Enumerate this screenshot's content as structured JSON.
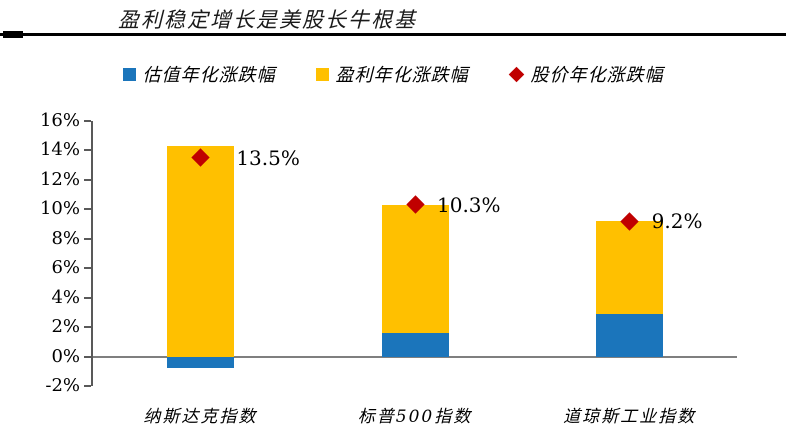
{
  "header": {
    "title": "盈利稳定增长是美股长牛根基"
  },
  "legend": {
    "items": [
      {
        "label": "估值年化涨跌幅",
        "color": "#1B75BB",
        "marker": "square"
      },
      {
        "label": "盈利年化涨跌幅",
        "color": "#FFC000",
        "marker": "square"
      },
      {
        "label": "股价年化涨跌幅",
        "color": "#C00000",
        "marker": "diamond"
      }
    ]
  },
  "colors": {
    "valuation_blue": "#1B75BB",
    "earnings_yellow": "#FFC000",
    "price_red": "#C00000",
    "axis": "#595959",
    "zero_line": "#7f7f7f"
  },
  "chart_data": {
    "type": "bar",
    "stacked": true,
    "title": "盈利稳定增长是美股长牛根基",
    "categories": [
      "纳斯达克指数",
      "标普500指数",
      "道琼斯工业指数"
    ],
    "series": [
      {
        "name": "估值年化涨跌幅",
        "role": "bar",
        "color": "#1B75BB",
        "values": [
          -0.8,
          1.6,
          2.9
        ]
      },
      {
        "name": "盈利年化涨跌幅",
        "role": "bar",
        "color": "#FFC000",
        "values": [
          14.3,
          8.7,
          6.3
        ]
      },
      {
        "name": "股价年化涨跌幅",
        "role": "point",
        "color": "#C00000",
        "values": [
          13.5,
          10.3,
          9.2
        ],
        "labels": [
          "13.5%",
          "10.3%",
          "9.2%"
        ]
      }
    ],
    "ylim": [
      -2,
      16
    ],
    "ytick_step": 2,
    "ytick_labels": [
      "16%",
      "14%",
      "12%",
      "10%",
      "8%",
      "6%",
      "4%",
      "2%",
      "0%",
      "-2%"
    ],
    "xlabel": "",
    "ylabel": "",
    "grid": false,
    "legend_position": "top"
  }
}
